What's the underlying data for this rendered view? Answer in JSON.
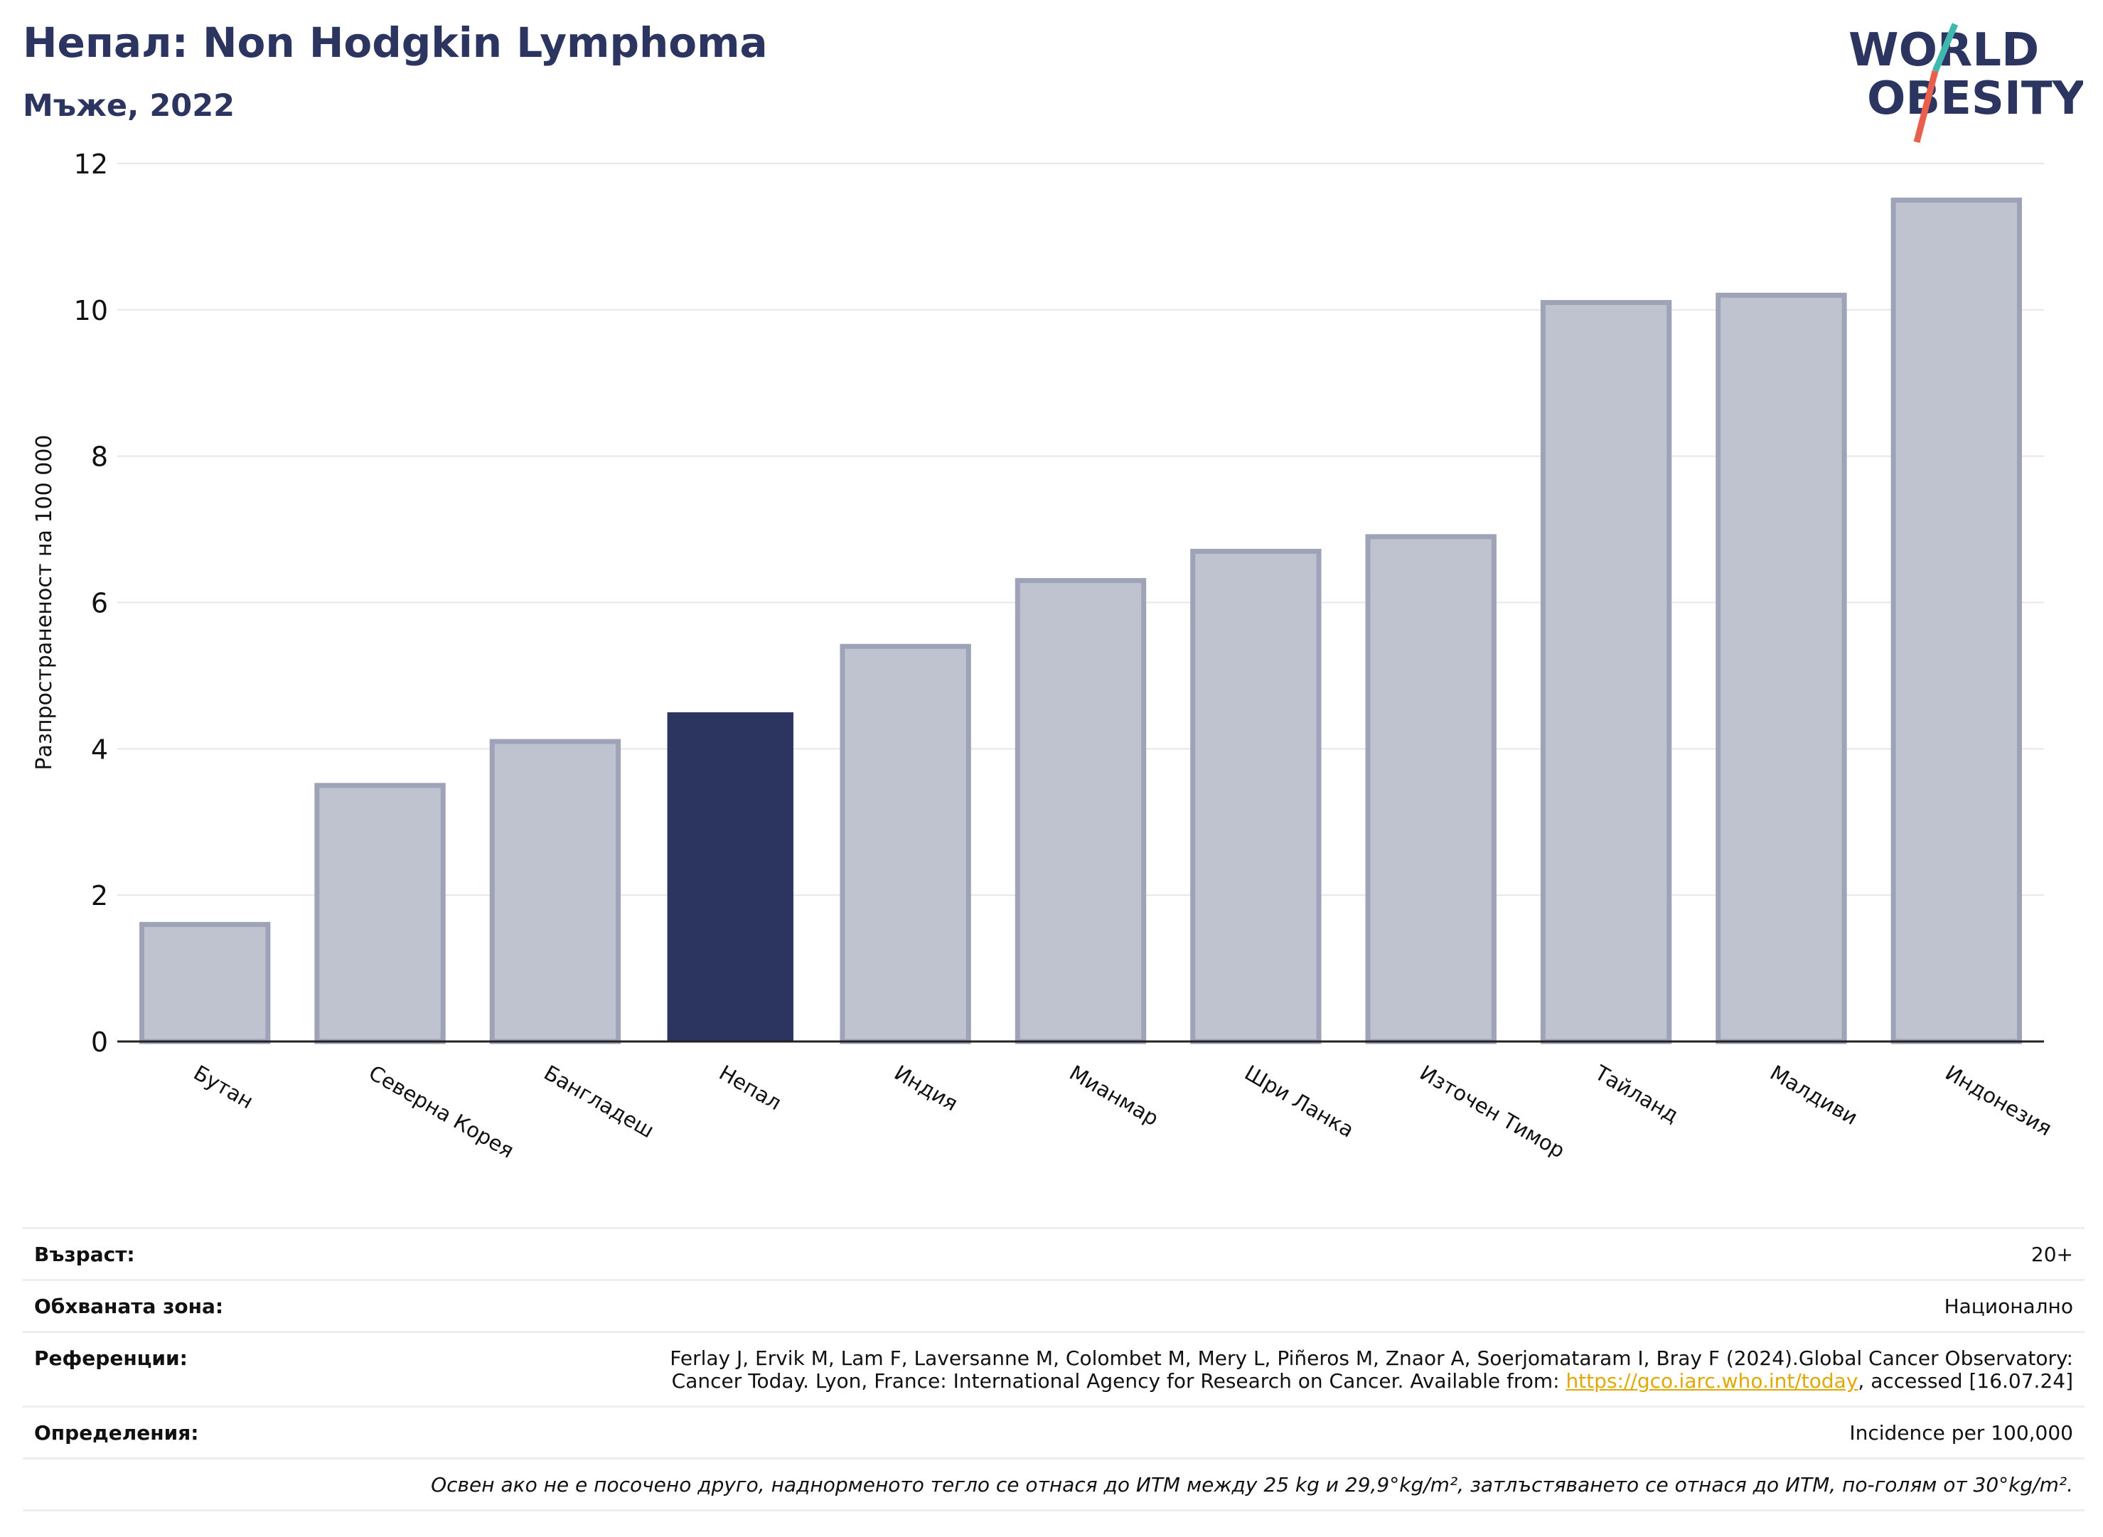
{
  "header": {
    "title": "Непал: Non Hodgkin Lymphoma",
    "subtitle": "Мъже, 2022"
  },
  "logo": {
    "line1": "WORLD",
    "line2": "OBESITY",
    "slash_colors": [
      "#3fb8af",
      "#e8604c"
    ],
    "text_color": "#2b3560"
  },
  "chart_data": {
    "type": "bar",
    "categories": [
      "Бутан",
      "Северна Корея",
      "Бангладеш",
      "Непал",
      "Индия",
      "Мианмар",
      "Шри Ланка",
      "Източен Тимор",
      "Тайланд",
      "Малдиви",
      "Индонезия"
    ],
    "values": [
      1.6,
      3.5,
      4.1,
      4.5,
      5.4,
      6.3,
      6.7,
      6.9,
      10.1,
      10.2,
      11.5
    ],
    "highlight": "Непал",
    "ylabel": "Разпространеност  на 100 000",
    "ylim": [
      0,
      12
    ],
    "yticks": [
      0,
      2,
      4,
      6,
      8,
      10,
      12
    ],
    "grid": true,
    "colors": {
      "highlight": "#2b3560",
      "other": "#bfc2cf",
      "other_edge": "#9ea3b8"
    }
  },
  "meta": {
    "age_label": "Възраст:",
    "age_value": "20+",
    "coverage_label": "Обхваната зона:",
    "coverage_value": "Национално",
    "references_label": "Референции:",
    "references_line1": "Ferlay J, Ervik M, Lam F, Laversanne M, Colombet M, Mery L, Piñeros M, Znaor A, Soerjomataram I, Bray F (2024).Global Cancer Observatory:",
    "references_line2_pre": "Cancer Today. Lyon, France: International Agency for Research on Cancer. Available from: ",
    "references_link": "https://gco.iarc.who.int/today",
    "references_line2_post": ", accessed [16.07.24]",
    "definitions_label": "Определения:",
    "definitions_value": "Incidence per 100,000",
    "note": "Освен ако не е посочено друго, наднорменото тегло се отнася до ИТМ между 25 kg и 29,9°kg/m², затлъстяването се отнася до ИТМ, по-голям от 30°kg/m²."
  }
}
